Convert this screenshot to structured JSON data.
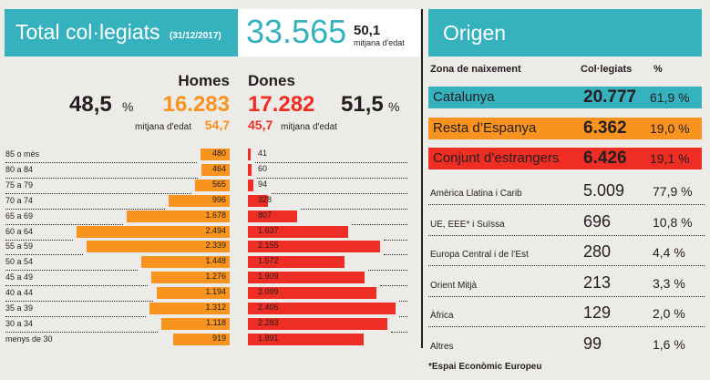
{
  "left": {
    "title": "Total col·legiats",
    "date": "(31/12/2017)",
    "total": "33.565",
    "avg_age": "50,1",
    "avg_label": "mitjana d'edat",
    "men": {
      "label": "Homes",
      "pct": "48,5",
      "total": "16.283",
      "avg_age": "54,7",
      "avg_label": "mitjana d'edat"
    },
    "women": {
      "label": "Dones",
      "pct": "51,5",
      "total": "17.282",
      "avg_age": "45,7",
      "avg_label": "mitjana d'edat"
    },
    "pct_sign": "%"
  },
  "chart_data": {
    "type": "bar",
    "orientation": "horizontal-pyramid",
    "categories": [
      "85 o més",
      "80 a 84",
      "75 a 79",
      "70 a 74",
      "65 a 69",
      "60 a 64",
      "55 a 59",
      "50 a 54",
      "45 a 49",
      "40 a 44",
      "35 a 39",
      "30 a 34",
      "menys de 30"
    ],
    "series": [
      {
        "name": "Homes",
        "color": "#f7931e",
        "values": [
          480,
          464,
          565,
          996,
          1678,
          2494,
          2339,
          1448,
          1276,
          1194,
          1312,
          1118,
          919
        ],
        "labels": [
          "480",
          "464",
          "565",
          "996",
          "1.678",
          "2.494",
          "2.339",
          "1.448",
          "1.276",
          "1.194",
          "1.312",
          "1.118",
          "919"
        ]
      },
      {
        "name": "Dones",
        "color": "#ee2d24",
        "values": [
          41,
          60,
          94,
          328,
          807,
          1637,
          2155,
          1572,
          1909,
          2099,
          2406,
          2283,
          1891
        ],
        "labels": [
          "41",
          "60",
          "94",
          "328",
          "807",
          "1.637",
          "2.155",
          "1.572",
          "1.909",
          "2.099",
          "2.406",
          "2.283",
          "1.891"
        ]
      }
    ]
  },
  "right": {
    "title": "Origen",
    "headers": [
      "Zona de naixement",
      "Col·legiats",
      "%"
    ],
    "main": [
      {
        "label": "Catalunya",
        "value": "20.777",
        "pct": "61,9 %",
        "color": "#36b2bf"
      },
      {
        "label": "Resta d’Espanya",
        "value": "6.362",
        "pct": "19,0 %",
        "color": "#f7931e"
      },
      {
        "label": "Conjunt d’estrangers",
        "value": "6.426",
        "pct": "19,1 %",
        "color": "#ee2d24"
      }
    ],
    "sub": [
      {
        "label": "Amèrica Llatina i Carib",
        "value": "5.009",
        "pct": "77,9 %"
      },
      {
        "label": "UE, EEE* i Suïssa",
        "value": "696",
        "pct": "10,8 %"
      },
      {
        "label": "Europa Central i de l’Est",
        "value": "280",
        "pct": "4,4 %"
      },
      {
        "label": "Orient Mitjà",
        "value": "213",
        "pct": "3,3 %"
      },
      {
        "label": "Àfrica",
        "value": "129",
        "pct": "2,0 %"
      },
      {
        "label": "Altres",
        "value": "99",
        "pct": "1,6 %"
      }
    ],
    "footnote": "*Espai Econòmic Europeu"
  }
}
